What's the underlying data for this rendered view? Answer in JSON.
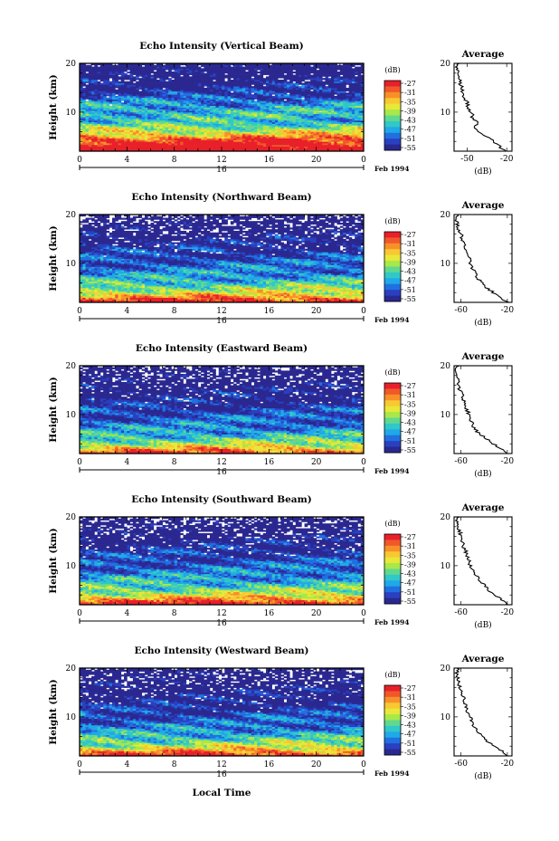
{
  "figure": {
    "x_axis_label": "Local Time",
    "x_ticks": [
      "0",
      "4",
      "8",
      "12",
      "16",
      "20",
      "0"
    ],
    "day_label": "16",
    "date_label": "Feb 1994",
    "y_axis_label": "Height (km)",
    "y_ticks": [
      "20",
      "10"
    ],
    "colorbar_unit": "(dB)",
    "colorbar_ticks": [
      "-27",
      "-31",
      "-35",
      "-39",
      "-43",
      "-47",
      "-51",
      "-55"
    ],
    "colorbar_colors": [
      "#e8202a",
      "#f0582a",
      "#f8902a",
      "#f8c832",
      "#e8e83a",
      "#a8e84a",
      "#60d890",
      "#30c8c8",
      "#20a8e8",
      "#2070e0",
      "#2a40c0",
      "#2a2890"
    ],
    "avg_title": "Average",
    "avg_unit_label": "(dB)",
    "avg_y_ticks": [
      "20",
      "10"
    ]
  },
  "chart_data": [
    {
      "type": "heatmap",
      "title": "Echo Intensity (Vertical Beam)",
      "xlabel": "",
      "ylabel": "Height (km)",
      "xlim": [
        0,
        24
      ],
      "ylim": [
        2,
        20
      ],
      "value_range_dB": [
        -55,
        -27
      ],
      "profile": [
        [
          2,
          -22
        ],
        [
          4,
          -28
        ],
        [
          6,
          -38
        ],
        [
          8,
          -45
        ],
        [
          10,
          -45
        ],
        [
          12,
          -48
        ],
        [
          14,
          -53
        ],
        [
          16,
          -55
        ],
        [
          18,
          -57
        ],
        [
          20,
          -58
        ]
      ],
      "average": {
        "title": "Average",
        "xlabel": "(dB)",
        "x_ticks": [
          "-50",
          "-20"
        ],
        "xlim": [
          -60,
          -16
        ],
        "profile": [
          [
            2,
            -22
          ],
          [
            3,
            -25
          ],
          [
            4,
            -30
          ],
          [
            5,
            -36
          ],
          [
            6,
            -42
          ],
          [
            7,
            -44
          ],
          [
            8,
            -43
          ],
          [
            9,
            -46
          ],
          [
            10,
            -47
          ],
          [
            11,
            -49
          ],
          [
            12,
            -50
          ],
          [
            13,
            -52
          ],
          [
            14,
            -53
          ],
          [
            15,
            -54
          ],
          [
            16,
            -56
          ],
          [
            17,
            -56
          ],
          [
            18,
            -57
          ],
          [
            19,
            -58
          ],
          [
            20,
            -57
          ]
        ]
      }
    },
    {
      "type": "heatmap",
      "title": "Echo Intensity (Northward Beam)",
      "xlabel": "",
      "ylabel": "Height (km)",
      "xlim": [
        0,
        24
      ],
      "ylim": [
        2,
        20
      ],
      "value_range_dB": [
        -55,
        -27
      ],
      "profile": [
        [
          2,
          -26
        ],
        [
          4,
          -38
        ],
        [
          6,
          -44
        ],
        [
          8,
          -48
        ],
        [
          10,
          -50
        ],
        [
          12,
          -52
        ],
        [
          14,
          -54
        ],
        [
          16,
          -56
        ],
        [
          18,
          -58
        ],
        [
          20,
          -59
        ]
      ],
      "average": {
        "title": "Average",
        "xlabel": "(dB)",
        "x_ticks": [
          "-60",
          "-20"
        ],
        "xlim": [
          -66,
          -16
        ],
        "profile": [
          [
            2,
            -20
          ],
          [
            3,
            -26
          ],
          [
            4,
            -32
          ],
          [
            5,
            -38
          ],
          [
            6,
            -42
          ],
          [
            7,
            -46
          ],
          [
            8,
            -48
          ],
          [
            9,
            -50
          ],
          [
            10,
            -52
          ],
          [
            11,
            -53
          ],
          [
            12,
            -55
          ],
          [
            13,
            -56
          ],
          [
            14,
            -58
          ],
          [
            15,
            -59
          ],
          [
            16,
            -60
          ],
          [
            17,
            -62
          ],
          [
            18,
            -63
          ],
          [
            19,
            -64
          ],
          [
            20,
            -62
          ]
        ]
      }
    },
    {
      "type": "heatmap",
      "title": "Echo Intensity (Eastward Beam)",
      "xlabel": "",
      "ylabel": "Height (km)",
      "xlim": [
        0,
        24
      ],
      "ylim": [
        2,
        20
      ],
      "value_range_dB": [
        -55,
        -27
      ],
      "profile": [
        [
          2,
          -28
        ],
        [
          4,
          -40
        ],
        [
          6,
          -46
        ],
        [
          8,
          -49
        ],
        [
          10,
          -51
        ],
        [
          12,
          -53
        ],
        [
          14,
          -55
        ],
        [
          16,
          -56
        ],
        [
          18,
          -58
        ],
        [
          20,
          -59
        ]
      ],
      "average": {
        "title": "Average",
        "xlabel": "(dB)",
        "x_ticks": [
          "-60",
          "-20"
        ],
        "xlim": [
          -66,
          -16
        ],
        "profile": [
          [
            2,
            -20
          ],
          [
            3,
            -26
          ],
          [
            4,
            -32
          ],
          [
            5,
            -38
          ],
          [
            6,
            -44
          ],
          [
            7,
            -48
          ],
          [
            8,
            -50
          ],
          [
            9,
            -52
          ],
          [
            10,
            -53
          ],
          [
            11,
            -55
          ],
          [
            12,
            -57
          ],
          [
            13,
            -58
          ],
          [
            14,
            -59
          ],
          [
            15,
            -61
          ],
          [
            16,
            -62
          ],
          [
            17,
            -63
          ],
          [
            18,
            -64
          ],
          [
            19,
            -65
          ],
          [
            20,
            -63
          ]
        ]
      }
    },
    {
      "type": "heatmap",
      "title": "Echo Intensity (Southward Beam)",
      "xlabel": "",
      "ylabel": "Height (km)",
      "xlim": [
        0,
        24
      ],
      "ylim": [
        2,
        20
      ],
      "value_range_dB": [
        -55,
        -27
      ],
      "profile": [
        [
          2,
          -26
        ],
        [
          4,
          -38
        ],
        [
          6,
          -44
        ],
        [
          8,
          -48
        ],
        [
          10,
          -50
        ],
        [
          12,
          -52
        ],
        [
          14,
          -54
        ],
        [
          16,
          -56
        ],
        [
          18,
          -58
        ],
        [
          20,
          -59
        ]
      ],
      "average": {
        "title": "Average",
        "xlabel": "(dB)",
        "x_ticks": [
          "-60",
          "-20"
        ],
        "xlim": [
          -66,
          -16
        ],
        "profile": [
          [
            2,
            -20
          ],
          [
            3,
            -25
          ],
          [
            4,
            -31
          ],
          [
            5,
            -36
          ],
          [
            6,
            -40
          ],
          [
            7,
            -44
          ],
          [
            8,
            -47
          ],
          [
            9,
            -50
          ],
          [
            10,
            -52
          ],
          [
            11,
            -53
          ],
          [
            12,
            -55
          ],
          [
            13,
            -56
          ],
          [
            14,
            -58
          ],
          [
            15,
            -59
          ],
          [
            16,
            -60
          ],
          [
            17,
            -61
          ],
          [
            18,
            -63
          ],
          [
            19,
            -64
          ],
          [
            20,
            -62
          ]
        ]
      }
    },
    {
      "type": "heatmap",
      "title": "Echo Intensity (Westward Beam)",
      "xlabel": "Local Time",
      "ylabel": "Height (km)",
      "xlim": [
        0,
        24
      ],
      "ylim": [
        2,
        20
      ],
      "value_range_dB": [
        -55,
        -27
      ],
      "profile": [
        [
          2,
          -27
        ],
        [
          4,
          -39
        ],
        [
          6,
          -45
        ],
        [
          8,
          -49
        ],
        [
          10,
          -51
        ],
        [
          12,
          -53
        ],
        [
          14,
          -55
        ],
        [
          16,
          -56
        ],
        [
          18,
          -58
        ],
        [
          20,
          -59
        ]
      ],
      "average": {
        "title": "Average",
        "xlabel": "(dB)",
        "x_ticks": [
          "-60",
          "-20"
        ],
        "xlim": [
          -66,
          -16
        ],
        "profile": [
          [
            2,
            -20
          ],
          [
            3,
            -25
          ],
          [
            4,
            -31
          ],
          [
            5,
            -37
          ],
          [
            6,
            -42
          ],
          [
            7,
            -46
          ],
          [
            8,
            -49
          ],
          [
            9,
            -51
          ],
          [
            10,
            -52
          ],
          [
            11,
            -54
          ],
          [
            12,
            -56
          ],
          [
            13,
            -57
          ],
          [
            14,
            -58
          ],
          [
            15,
            -60
          ],
          [
            16,
            -61
          ],
          [
            17,
            -62
          ],
          [
            18,
            -63
          ],
          [
            19,
            -64
          ],
          [
            20,
            -62
          ]
        ]
      }
    }
  ]
}
